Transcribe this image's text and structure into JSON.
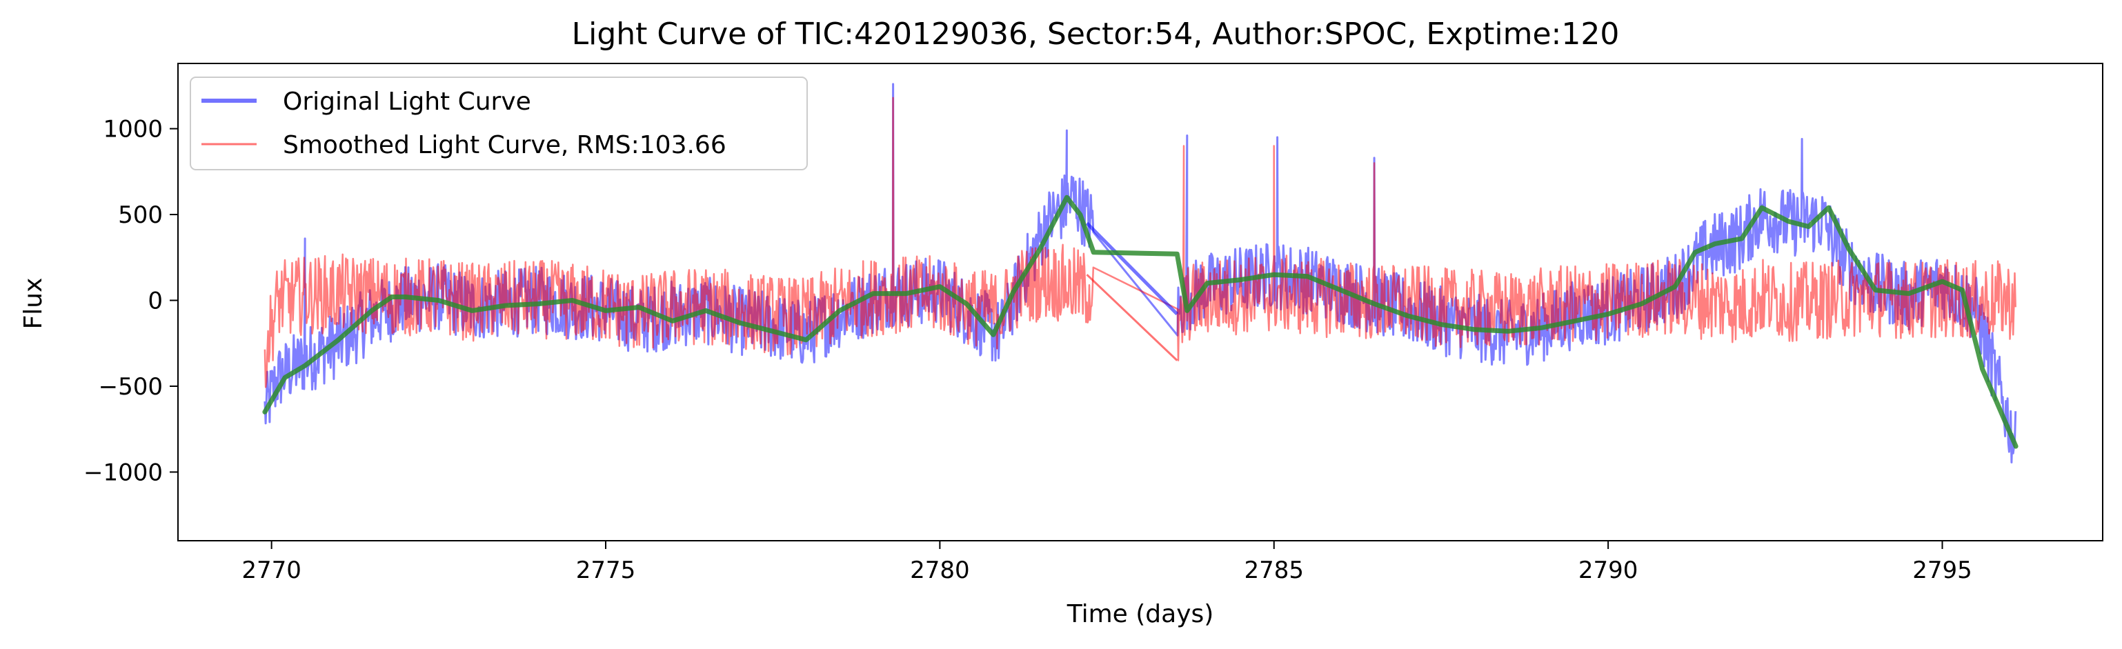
{
  "chart_data": {
    "type": "line",
    "title": "Light Curve of TIC:420129036, Sector:54, Author:SPOC, Exptime:120",
    "xlabel": "Time (days)",
    "ylabel": "Flux",
    "xlim": [
      2768.6,
      2797.4
    ],
    "ylim": [
      -1400,
      1380
    ],
    "xticks": [
      2770,
      2775,
      2780,
      2785,
      2790,
      2795
    ],
    "xtick_labels": [
      "2770",
      "2775",
      "2780",
      "2785",
      "2790",
      "2795"
    ],
    "yticks": [
      -1000,
      -500,
      0,
      500,
      1000
    ],
    "ytick_labels": [
      "−1000",
      "−500",
      "0",
      "500",
      "1000"
    ],
    "grid": false,
    "legend_position": "upper-left",
    "colors": {
      "original": "#0000ff",
      "smoothed": "#ff0000",
      "trend": "#2e8b2e"
    },
    "series": [
      {
        "name": "Original Light Curve",
        "style": "thick line, semi-transparent",
        "x": [
          2769.9,
          2770.1,
          2770.5,
          2771.0,
          2771.5,
          2772.0,
          2772.5,
          2773.0,
          2773.5,
          2774.0,
          2774.5,
          2775.0,
          2775.5,
          2776.0,
          2776.5,
          2777.0,
          2777.5,
          2778.0,
          2778.5,
          2779.0,
          2779.3,
          2779.5,
          2780.0,
          2780.5,
          2780.9,
          2781.2,
          2781.6,
          2782.0,
          2782.3,
          2783.55,
          2783.7,
          2784.0,
          2784.5,
          2785.0,
          2785.5,
          2786.0,
          2786.5,
          2787.0,
          2787.5,
          2788.0,
          2788.5,
          2789.0,
          2789.5,
          2790.0,
          2790.5,
          2791.0,
          2791.5,
          2792.0,
          2792.3,
          2792.7,
          2793.2,
          2793.6,
          2794.0,
          2794.5,
          2795.0,
          2795.5,
          2796.1
        ],
        "y": [
          -650,
          -450,
          -350,
          -250,
          -100,
          0,
          20,
          -40,
          -20,
          0,
          -30,
          -50,
          -120,
          -80,
          -60,
          -120,
          -150,
          -200,
          -80,
          0,
          50,
          40,
          60,
          -100,
          -200,
          100,
          450,
          600,
          430,
          -80,
          20,
          80,
          120,
          150,
          120,
          60,
          0,
          -60,
          -120,
          -160,
          -200,
          -160,
          -80,
          -60,
          0,
          80,
          300,
          370,
          500,
          450,
          470,
          200,
          80,
          20,
          100,
          -50,
          -850
        ]
      },
      {
        "name": "Smoothed Light Curve, RMS:103.66",
        "style": "thin line, semi-transparent",
        "x": [
          2769.9,
          2770.1,
          2770.5,
          2771.0,
          2771.5,
          2772.0,
          2772.5,
          2773.0,
          2773.5,
          2774.0,
          2774.5,
          2775.0,
          2775.5,
          2776.0,
          2776.5,
          2777.0,
          2777.5,
          2778.0,
          2778.5,
          2779.0,
          2779.3,
          2779.5,
          2780.0,
          2780.5,
          2780.9,
          2781.2,
          2781.6,
          2782.0,
          2782.3,
          2783.55,
          2783.7,
          2784.0,
          2784.5,
          2785.0,
          2785.5,
          2786.0,
          2786.5,
          2787.0,
          2787.5,
          2788.0,
          2788.5,
          2789.0,
          2789.5,
          2790.0,
          2790.5,
          2791.0,
          2791.5,
          2792.0,
          2792.3,
          2792.7,
          2793.2,
          2793.6,
          2794.0,
          2794.5,
          2795.0,
          2795.5,
          2796.1
        ],
        "y": [
          -300,
          0,
          30,
          40,
          30,
          20,
          20,
          -10,
          0,
          10,
          -10,
          -30,
          -80,
          -40,
          -30,
          -60,
          -80,
          -100,
          -20,
          20,
          40,
          30,
          30,
          -40,
          -60,
          80,
          120,
          80,
          50,
          -250,
          -20,
          20,
          30,
          40,
          20,
          10,
          -10,
          -20,
          -40,
          -50,
          -60,
          -40,
          -20,
          -10,
          10,
          20,
          0,
          -30,
          20,
          -10,
          0,
          10,
          20,
          0,
          10,
          0,
          0
        ]
      },
      {
        "name": "",
        "style": "thick green trend line",
        "x": [
          2769.9,
          2770.2,
          2770.5,
          2771.0,
          2771.5,
          2771.8,
          2772.0,
          2772.5,
          2773.0,
          2773.5,
          2774.0,
          2774.5,
          2775.0,
          2775.5,
          2776.0,
          2776.5,
          2777.0,
          2777.5,
          2778.0,
          2778.5,
          2779.0,
          2779.5,
          2780.0,
          2780.4,
          2780.8,
          2781.1,
          2781.5,
          2781.9,
          2782.1,
          2782.3,
          2783.55,
          2783.7,
          2784.0,
          2784.5,
          2785.0,
          2785.5,
          2786.0,
          2786.5,
          2787.0,
          2787.5,
          2788.0,
          2788.5,
          2789.0,
          2789.5,
          2790.0,
          2790.5,
          2791.0,
          2791.3,
          2791.6,
          2792.0,
          2792.3,
          2792.7,
          2793.0,
          2793.3,
          2793.6,
          2794.0,
          2794.5,
          2795.0,
          2795.3,
          2795.6,
          2796.1
        ],
        "y": [
          -650,
          -450,
          -380,
          -230,
          -60,
          20,
          20,
          0,
          -60,
          -30,
          -20,
          0,
          -60,
          -40,
          -120,
          -60,
          -130,
          -180,
          -230,
          -60,
          40,
          40,
          80,
          -20,
          -200,
          50,
          300,
          600,
          500,
          280,
          270,
          -60,
          100,
          120,
          150,
          140,
          60,
          -20,
          -90,
          -140,
          -170,
          -180,
          -160,
          -120,
          -80,
          -20,
          80,
          280,
          330,
          360,
          540,
          460,
          430,
          540,
          300,
          60,
          40,
          110,
          60,
          -400,
          -850
        ]
      }
    ],
    "legend": [
      "Original Light Curve",
      "Smoothed Light Curve, RMS:103.66"
    ]
  }
}
